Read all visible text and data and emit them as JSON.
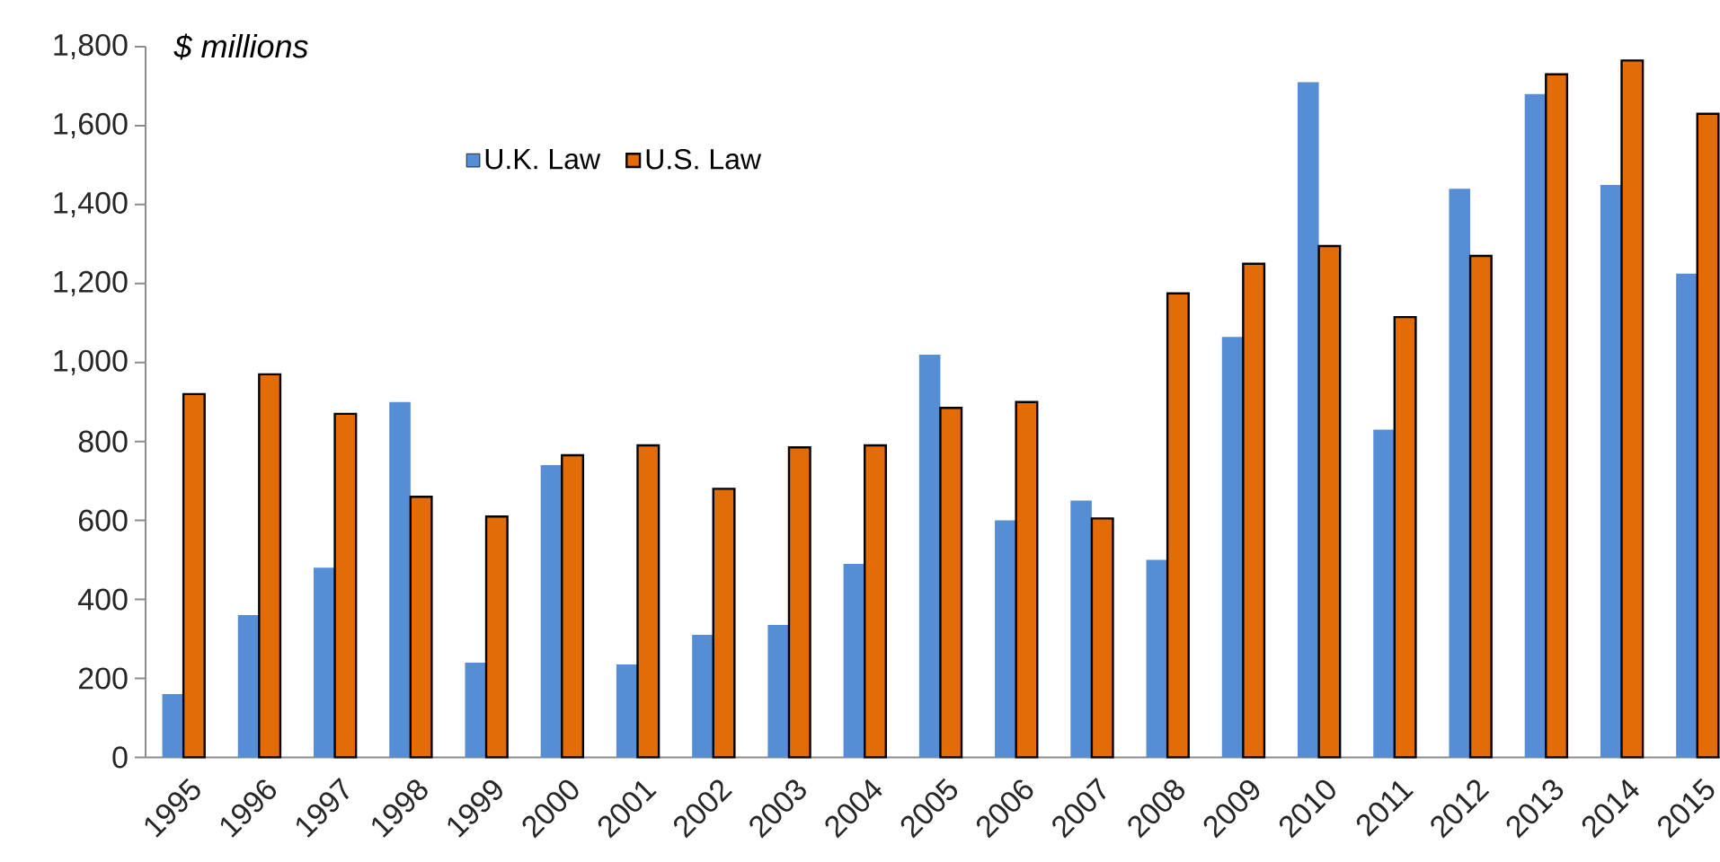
{
  "chart_data": {
    "type": "bar",
    "ylabel": "$ millions",
    "categories": [
      "1995",
      "1996",
      "1997",
      "1998",
      "1999",
      "2000",
      "2001",
      "2002",
      "2003",
      "2004",
      "2005",
      "2006",
      "2007",
      "2008",
      "2009",
      "2010",
      "2011",
      "2012",
      "2013",
      "2014",
      "2015"
    ],
    "series": [
      {
        "name": "U.K. Law",
        "color": "#558ed5",
        "values": [
          160,
          360,
          480,
          900,
          240,
          740,
          235,
          310,
          335,
          490,
          1020,
          600,
          650,
          500,
          1065,
          1710,
          830,
          1440,
          1680,
          1450,
          1225
        ]
      },
      {
        "name": "U.S. Law",
        "color": "#e36c09",
        "values": [
          920,
          970,
          870,
          660,
          610,
          765,
          790,
          680,
          785,
          790,
          885,
          900,
          605,
          1175,
          1250,
          1295,
          1115,
          1270,
          1730,
          1765,
          1630
        ]
      }
    ],
    "ylim": [
      0,
      1800
    ],
    "yticks": [
      0,
      200,
      400,
      600,
      800,
      {
        "value": 1000,
        "label": "1,000"
      },
      {
        "value": 1200,
        "label": "1,200"
      },
      {
        "value": 1400,
        "label": "1,400"
      },
      {
        "value": 1600,
        "label": "1,600"
      },
      {
        "value": 1800,
        "label": "1,800"
      }
    ],
    "grid": false,
    "legend": "top"
  }
}
